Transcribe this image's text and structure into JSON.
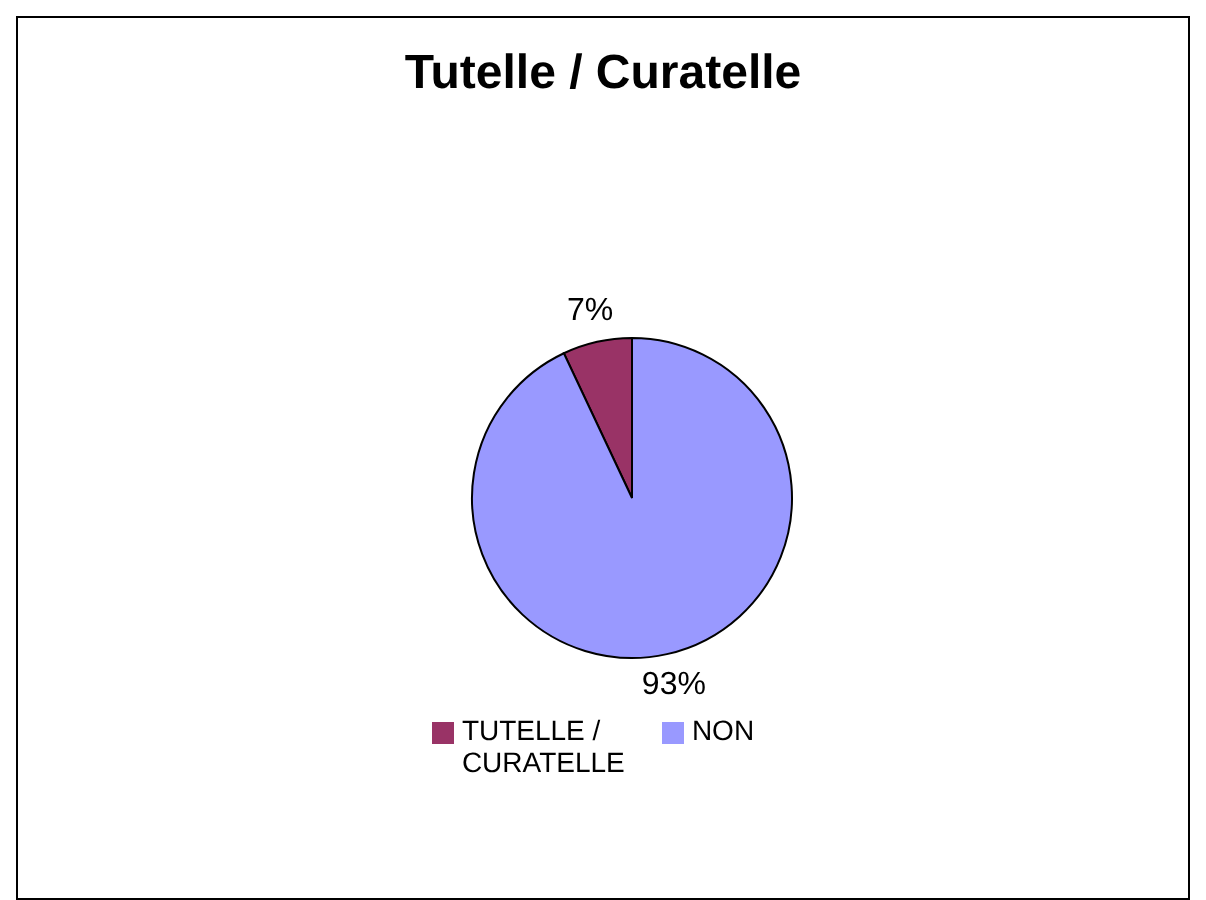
{
  "chart_data": {
    "type": "pie",
    "title": "Tutelle / Curatelle",
    "categories": [
      "TUTELLE / CURATELLE",
      "NON"
    ],
    "values": [
      7,
      93
    ],
    "colors": [
      "#993366",
      "#9999ff"
    ],
    "value_labels": [
      "7%",
      "93%"
    ],
    "legend": "bottom"
  }
}
